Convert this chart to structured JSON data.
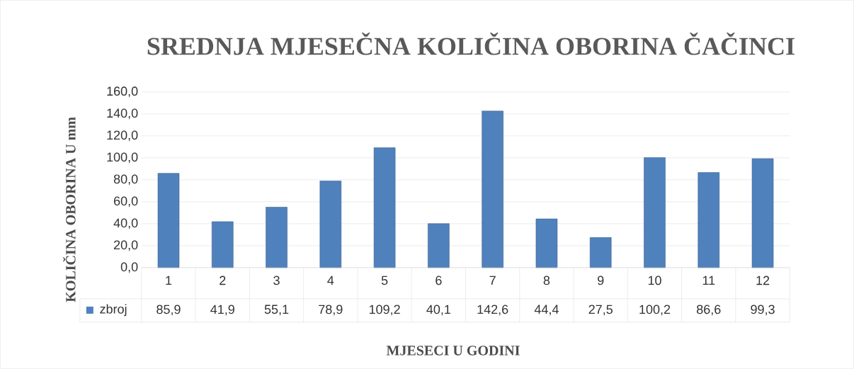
{
  "chart_data": {
    "type": "bar",
    "title": "SREDNJA MJESEČNA KOLIČINA OBORINA ČAČINCI",
    "xlabel": "MJESECI U GODINI",
    "ylabel": "KOLIČINA OBORINA U mm",
    "categories": [
      "1",
      "2",
      "3",
      "4",
      "5",
      "6",
      "7",
      "8",
      "9",
      "10",
      "11",
      "12"
    ],
    "series": [
      {
        "name": "zbroj",
        "color": "#4f81bd",
        "values": [
          85.9,
          41.9,
          55.1,
          78.9,
          109.2,
          40.1,
          142.6,
          44.4,
          27.5,
          100.2,
          86.6,
          99.3
        ],
        "value_labels": [
          "85,9",
          "41,9",
          "55,1",
          "78,9",
          "109,2",
          "40,1",
          "142,6",
          "44,4",
          "27,5",
          "100,2",
          "86,6",
          "99,3"
        ]
      }
    ],
    "ylim": [
      0,
      160
    ],
    "yticks": [
      {
        "value": 0,
        "label": "0,0"
      },
      {
        "value": 20,
        "label": "20,0"
      },
      {
        "value": 40,
        "label": "40,0"
      },
      {
        "value": 60,
        "label": "60,0"
      },
      {
        "value": 80,
        "label": "80,0"
      },
      {
        "value": 100,
        "label": "100,0"
      },
      {
        "value": 120,
        "label": "120,0"
      },
      {
        "value": 140,
        "label": "140,0"
      },
      {
        "value": 160,
        "label": "160,0"
      }
    ],
    "grid": "y",
    "legend": "bottom"
  }
}
